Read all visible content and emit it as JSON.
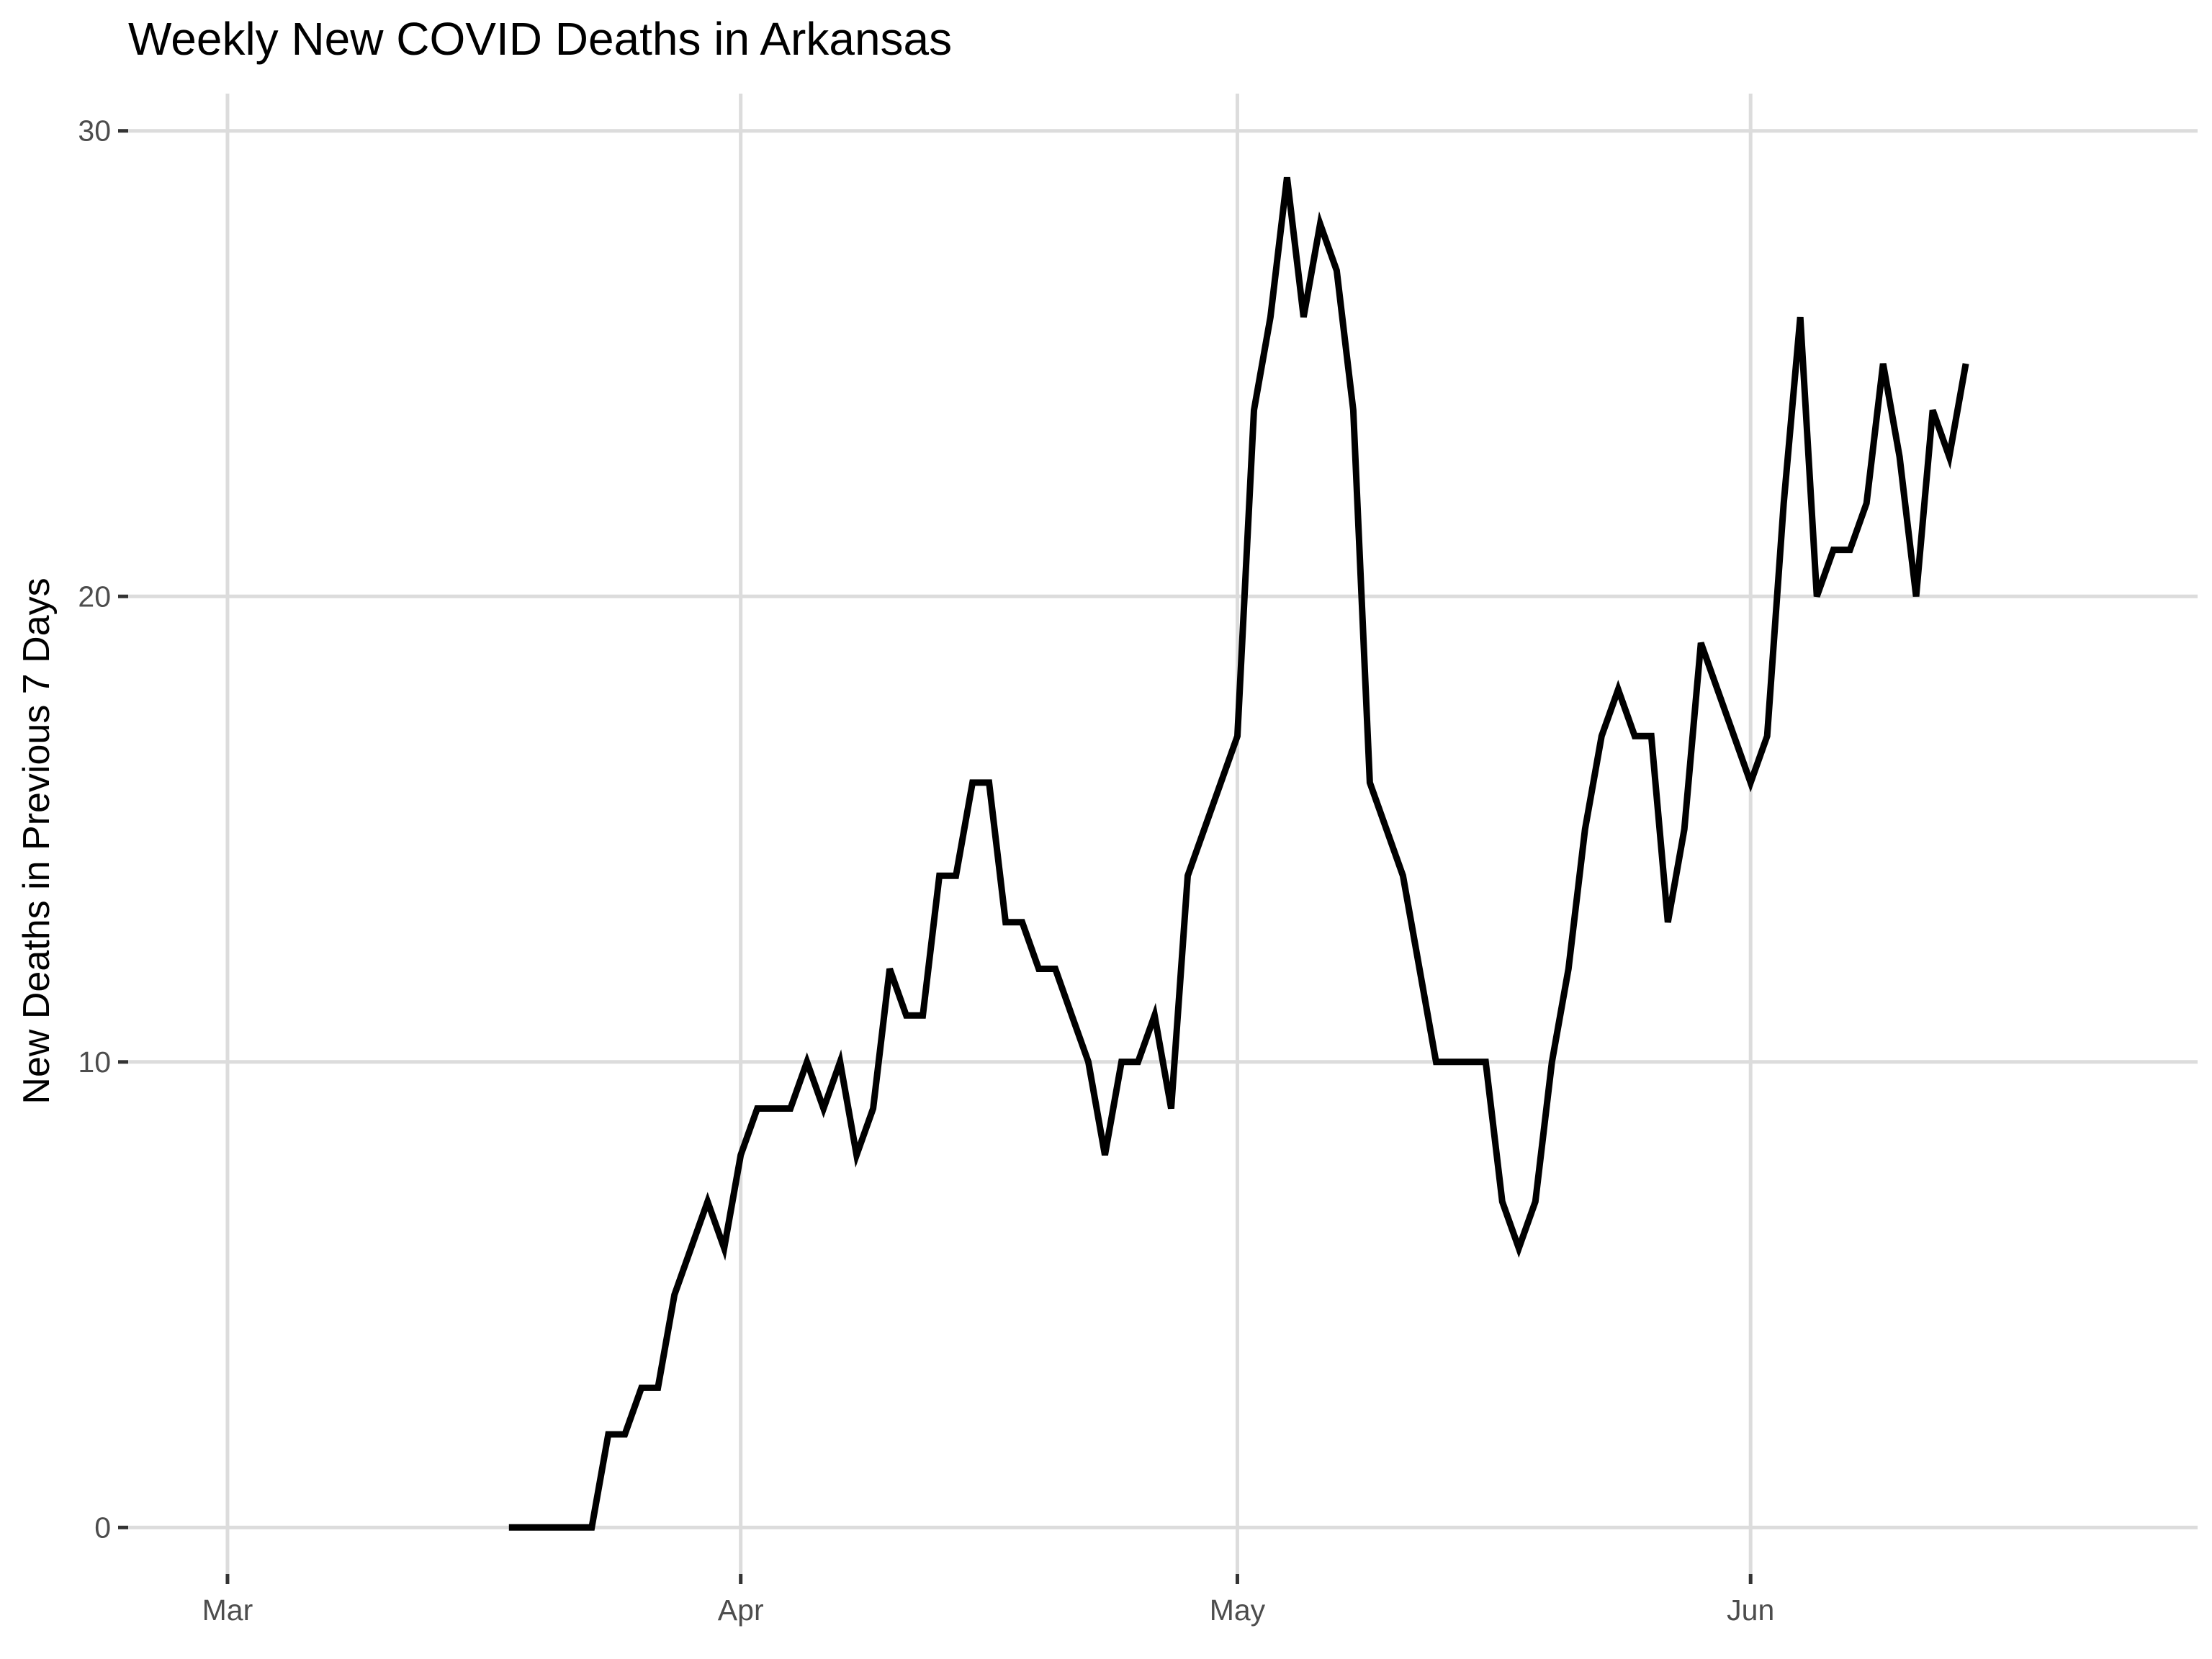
{
  "chart_data": {
    "type": "line",
    "title": "Weekly New COVID Deaths in Arkansas",
    "xlabel": "",
    "ylabel": "New Deaths in Previous 7 Days",
    "x_tick_labels": [
      "Mar",
      "Apr",
      "May",
      "Jun"
    ],
    "x_ticks": [
      "2020-03-01",
      "2020-04-01",
      "2020-05-01",
      "2020-06-01"
    ],
    "xlim": [
      "2020-02-24",
      "2020-06-28"
    ],
    "y_ticks": [
      0,
      10,
      20,
      30
    ],
    "ylim": [
      -1,
      30.8
    ],
    "grid": true,
    "legend": "none",
    "colors": {
      "line": "#000000",
      "grid": "#dcdcdc",
      "tick_text": "#4d4d4d",
      "background": "#ffffff"
    },
    "series": [
      {
        "x": [
          "2020-03-18",
          "2020-03-19",
          "2020-03-20",
          "2020-03-21",
          "2020-03-22",
          "2020-03-23",
          "2020-03-24",
          "2020-03-25",
          "2020-03-26",
          "2020-03-27",
          "2020-03-28",
          "2020-03-29",
          "2020-03-30",
          "2020-03-31",
          "2020-04-01",
          "2020-04-02",
          "2020-04-03",
          "2020-04-04",
          "2020-04-05",
          "2020-04-06",
          "2020-04-07",
          "2020-04-08",
          "2020-04-09",
          "2020-04-10",
          "2020-04-11",
          "2020-04-12",
          "2020-04-13",
          "2020-04-14",
          "2020-04-15",
          "2020-04-16",
          "2020-04-17",
          "2020-04-18",
          "2020-04-19",
          "2020-04-20",
          "2020-04-21",
          "2020-04-22",
          "2020-04-23",
          "2020-04-24",
          "2020-04-25",
          "2020-04-26",
          "2020-04-27",
          "2020-04-28",
          "2020-04-29",
          "2020-04-30",
          "2020-05-01",
          "2020-05-02",
          "2020-05-03",
          "2020-05-04",
          "2020-05-05",
          "2020-05-06",
          "2020-05-07",
          "2020-05-08",
          "2020-05-09",
          "2020-05-10",
          "2020-05-11",
          "2020-05-12",
          "2020-05-13",
          "2020-05-14",
          "2020-05-15",
          "2020-05-16",
          "2020-05-17",
          "2020-05-18",
          "2020-05-19",
          "2020-05-20",
          "2020-05-21",
          "2020-05-22",
          "2020-05-23",
          "2020-05-24",
          "2020-05-25",
          "2020-05-26",
          "2020-05-27",
          "2020-05-28",
          "2020-05-29",
          "2020-05-30",
          "2020-05-31",
          "2020-06-01",
          "2020-06-02",
          "2020-06-03",
          "2020-06-04",
          "2020-06-05",
          "2020-06-06",
          "2020-06-07",
          "2020-06-08",
          "2020-06-09",
          "2020-06-10",
          "2020-06-11",
          "2020-06-12",
          "2020-06-13",
          "2020-06-14"
        ],
        "y": [
          0,
          0,
          0,
          0,
          0,
          0,
          2,
          2,
          3,
          3,
          5,
          6,
          7,
          6,
          8,
          9,
          9,
          9,
          10,
          9,
          10,
          8,
          9,
          12,
          11,
          11,
          14,
          14,
          16,
          16,
          13,
          13,
          12,
          12,
          11,
          10,
          8,
          10,
          10,
          11,
          9,
          14,
          15,
          16,
          17,
          24,
          26,
          29,
          26,
          28,
          27,
          24,
          16,
          15,
          14,
          12,
          10,
          10,
          10,
          10,
          7,
          6,
          7,
          10,
          12,
          15,
          17,
          18,
          17,
          17,
          13,
          15,
          19,
          18,
          17,
          16,
          17,
          22,
          26,
          20,
          21,
          21,
          22,
          25,
          23,
          20,
          24,
          23,
          25
        ]
      }
    ]
  }
}
